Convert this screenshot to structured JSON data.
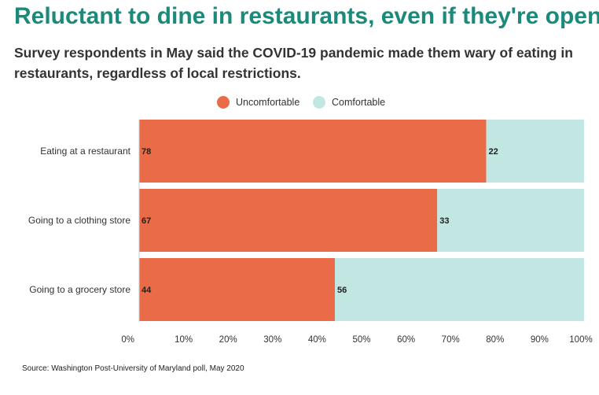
{
  "title": "Reluctant to dine in restaurants, even if they're open",
  "subtitle": "Survey respondents in May said the COVID-19 pandemic made them wary of eating in restaurants, regardless of local restrictions.",
  "source": "Source: Washington Post-University of Maryland poll, May 2020",
  "colors": {
    "title": "#1b8a7a",
    "uncomfortable": "#ea6b48",
    "comfortable": "#c2e6e1"
  },
  "chart_data": {
    "type": "bar",
    "orientation": "horizontal",
    "stacked": true,
    "categories": [
      "Eating at a restaurant",
      "Going to a clothing store",
      "Going to a grocery store"
    ],
    "series": [
      {
        "name": "Uncomfortable",
        "values": [
          78,
          67,
          44
        ],
        "color": "#ea6b48"
      },
      {
        "name": "Comfortable",
        "values": [
          22,
          33,
          56
        ],
        "color": "#c2e6e1"
      }
    ],
    "xlim": [
      0,
      100
    ],
    "xticks": [
      "0%",
      "10%",
      "20%",
      "30%",
      "40%",
      "50%",
      "60%",
      "70%",
      "80%",
      "90%",
      "100%"
    ],
    "legend_position": "top-center",
    "grid": false
  }
}
